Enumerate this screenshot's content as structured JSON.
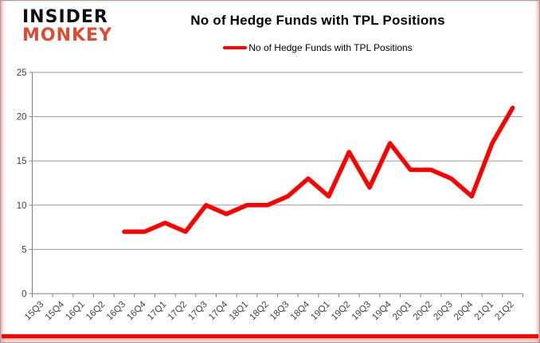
{
  "brand": {
    "line1": "INSIDER",
    "line2": "MONKEY"
  },
  "header": {
    "title": "No of Hedge Funds with TPL Positions"
  },
  "legend": {
    "label": "No of Hedge Funds with TPL Positions"
  },
  "chart_data": {
    "type": "line",
    "title": "No of Hedge Funds with TPL Positions",
    "categories": [
      "15Q3",
      "15Q4",
      "16Q1",
      "16Q2",
      "16Q3",
      "16Q4",
      "17Q1",
      "17Q2",
      "17Q3",
      "17Q4",
      "18Q1",
      "18Q2",
      "18Q3",
      "18Q4",
      "19Q1",
      "19Q2",
      "19Q3",
      "19Q4",
      "20Q1",
      "20Q2",
      "20Q3",
      "20Q4",
      "21Q1",
      "21Q2"
    ],
    "series": [
      {
        "name": "No of Hedge Funds with TPL Positions",
        "color": "#FF0000",
        "values": [
          null,
          null,
          null,
          null,
          7,
          7,
          8,
          7,
          10,
          9,
          10,
          10,
          11,
          13,
          11,
          16,
          12,
          17,
          14,
          14,
          13,
          11,
          17,
          21
        ]
      }
    ],
    "xlabel": "",
    "ylabel": "",
    "ylim": [
      0,
      25
    ],
    "yticks": [
      0,
      5,
      10,
      15,
      20,
      25
    ],
    "grid": "horizontal-only",
    "legend_position": "top-center"
  },
  "colors": {
    "series_red": "#FF0000",
    "logo_red": "#E04A2F",
    "gridline": "#9a9a9a",
    "axis": "#808080",
    "tick_label": "#3f3f3f",
    "accent_bar": "#FF0000"
  }
}
